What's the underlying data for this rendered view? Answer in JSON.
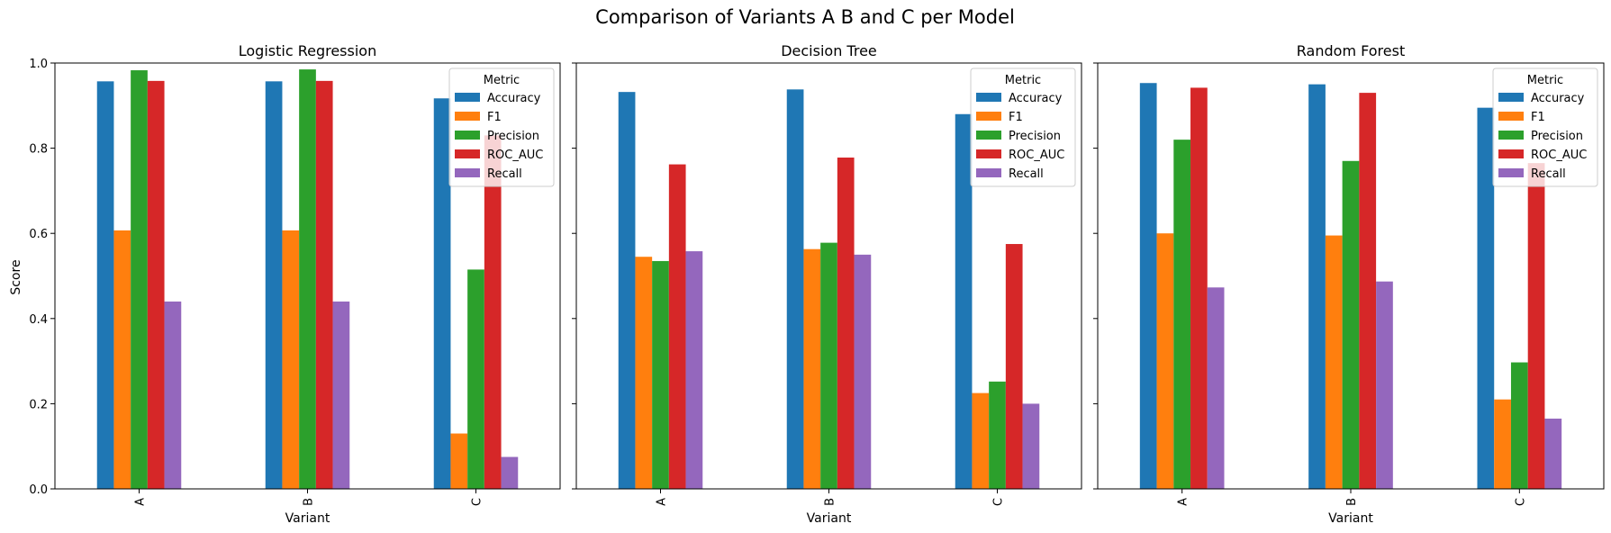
{
  "suptitle": "Comparison of Variants A B and C per Model",
  "y_axis_label": "Score",
  "x_axis_label": "Variant",
  "legend_title": "Metric",
  "y_ticks": [
    "0.0",
    "0.2",
    "0.4",
    "0.6",
    "0.8",
    "1.0"
  ],
  "colors": {
    "Accuracy": "#1f77b4",
    "F1": "#ff7f0e",
    "Precision": "#2ca02c",
    "ROC_AUC": "#d62728",
    "Recall": "#9467bd"
  },
  "chart_data": [
    {
      "type": "bar",
      "title": "Logistic Regression",
      "xlabel": "Variant",
      "ylabel": "Score",
      "ylim": [
        0,
        1
      ],
      "grid": false,
      "legend": "top-right",
      "categories": [
        "A",
        "B",
        "C"
      ],
      "series": [
        {
          "name": "Accuracy",
          "values": [
            0.957,
            0.957,
            0.917
          ]
        },
        {
          "name": "F1",
          "values": [
            0.607,
            0.607,
            0.13
          ]
        },
        {
          "name": "Precision",
          "values": [
            0.983,
            0.985,
            0.515
          ]
        },
        {
          "name": "ROC_AUC",
          "values": [
            0.958,
            0.958,
            0.83
          ]
        },
        {
          "name": "Recall",
          "values": [
            0.44,
            0.44,
            0.075
          ]
        }
      ]
    },
    {
      "type": "bar",
      "title": "Decision Tree",
      "xlabel": "Variant",
      "ylabel": "",
      "ylim": [
        0,
        1
      ],
      "grid": false,
      "legend": "top-right",
      "categories": [
        "A",
        "B",
        "C"
      ],
      "series": [
        {
          "name": "Accuracy",
          "values": [
            0.932,
            0.938,
            0.88
          ]
        },
        {
          "name": "F1",
          "values": [
            0.545,
            0.563,
            0.225
          ]
        },
        {
          "name": "Precision",
          "values": [
            0.535,
            0.578,
            0.252
          ]
        },
        {
          "name": "ROC_AUC",
          "values": [
            0.762,
            0.778,
            0.575
          ]
        },
        {
          "name": "Recall",
          "values": [
            0.558,
            0.55,
            0.2
          ]
        }
      ]
    },
    {
      "type": "bar",
      "title": "Random Forest",
      "xlabel": "Variant",
      "ylabel": "",
      "ylim": [
        0,
        1
      ],
      "grid": false,
      "legend": "top-right",
      "categories": [
        "A",
        "B",
        "C"
      ],
      "series": [
        {
          "name": "Accuracy",
          "values": [
            0.953,
            0.95,
            0.895
          ]
        },
        {
          "name": "F1",
          "values": [
            0.6,
            0.595,
            0.21
          ]
        },
        {
          "name": "Precision",
          "values": [
            0.82,
            0.77,
            0.297
          ]
        },
        {
          "name": "ROC_AUC",
          "values": [
            0.942,
            0.93,
            0.765
          ]
        },
        {
          "name": "Recall",
          "values": [
            0.473,
            0.487,
            0.165
          ]
        }
      ]
    }
  ]
}
